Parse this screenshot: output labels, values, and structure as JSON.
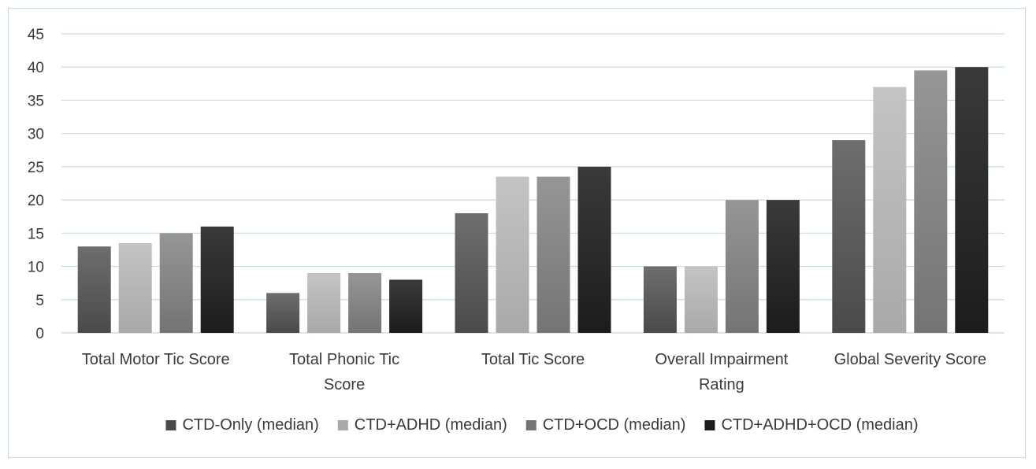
{
  "chart_data": {
    "type": "bar",
    "title": "",
    "xlabel": "",
    "ylabel": "",
    "ylim": [
      0,
      45
    ],
    "yticks": [
      0,
      5,
      10,
      15,
      20,
      25,
      30,
      35,
      40,
      45
    ],
    "grid": true,
    "legend_position": "bottom",
    "categories": [
      [
        "Total Motor Tic Score"
      ],
      [
        "Total Phonic Tic",
        "Score"
      ],
      [
        "Total Tic Score"
      ],
      [
        "Overall Impairment",
        "Rating"
      ],
      [
        "Global Severity Score"
      ]
    ],
    "series": [
      {
        "name": "CTD-Only (median)",
        "values": [
          13,
          6,
          18,
          10,
          29
        ]
      },
      {
        "name": "CTD+ADHD (median)",
        "values": [
          13.5,
          9,
          23.5,
          10,
          37
        ]
      },
      {
        "name": "CTD+OCD (median)",
        "values": [
          15,
          9,
          23.5,
          20,
          39.5
        ]
      },
      {
        "name": "CTD+ADHD+OCD (median)",
        "values": [
          16,
          8,
          25,
          20,
          40
        ]
      }
    ]
  },
  "colors": {
    "series": [
      [
        "#4a4a4a",
        "#6e6e6e"
      ],
      [
        "#a9a9a9",
        "#c4c4c4"
      ],
      [
        "#747474",
        "#969696"
      ],
      [
        "#1c1c1c",
        "#3a3a3a"
      ]
    ],
    "grid": "#c9dbe8",
    "axis": "#c9dbe8"
  }
}
